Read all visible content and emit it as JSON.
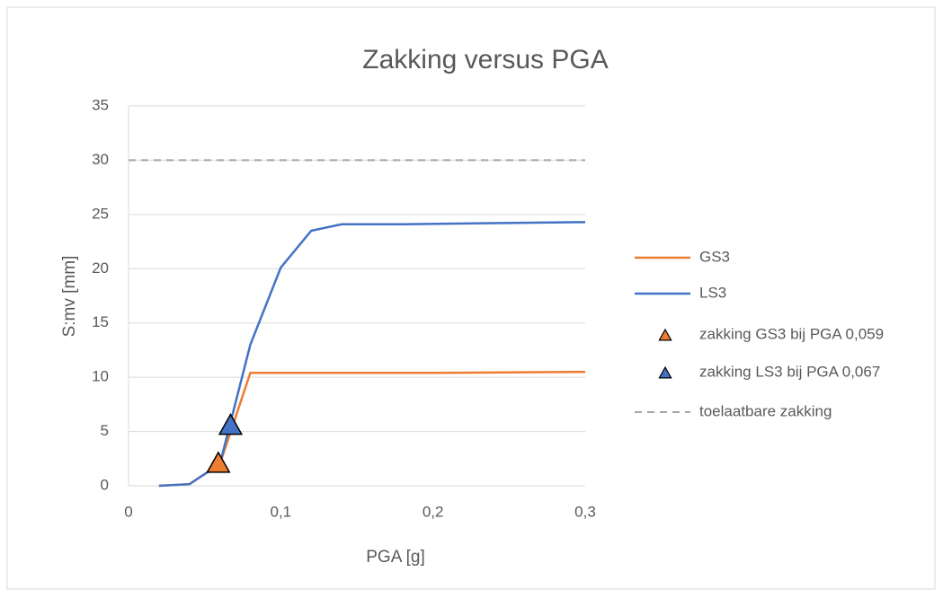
{
  "chart_data": {
    "type": "line",
    "title": "Zakking versus PGA",
    "x_label": "PGA [g]",
    "y_label": "S:mv [mm]",
    "xlim": [
      0,
      0.3
    ],
    "xticks": [
      0,
      {
        "value": 0.1,
        "label": "0,1"
      },
      {
        "value": 0.2,
        "label": "0,2"
      },
      {
        "value": 0.3,
        "label": "0,3"
      }
    ],
    "ylim": [
      0,
      35
    ],
    "yticks": [
      0,
      5,
      10,
      15,
      20,
      25,
      30,
      35
    ],
    "grid": true,
    "legend": "right",
    "series": [
      {
        "name": "GS3",
        "color": "#ed7d31",
        "kind": "line",
        "x": [
          0.02,
          0.04,
          0.06,
          0.08,
          0.1,
          0.2,
          0.3
        ],
        "values": [
          0,
          0.15,
          2,
          10.4,
          10.4,
          10.4,
          10.5
        ]
      },
      {
        "name": "LS3",
        "color": "#4472c4",
        "kind": "line",
        "x": [
          0.02,
          0.04,
          0.06,
          0.08,
          0.1,
          0.12,
          0.14,
          0.18,
          0.3
        ],
        "values": [
          0,
          0.15,
          2,
          13,
          20.1,
          23.5,
          24.1,
          24.1,
          24.3
        ]
      },
      {
        "name": "zakking GS3 bij PGA 0,059",
        "color": "#ed7d31",
        "kind": "scatter",
        "x": [
          0.059
        ],
        "values": [
          2
        ]
      },
      {
        "name": "zakking LS3 bij PGA 0,067",
        "color": "#4472c4",
        "kind": "scatter",
        "x": [
          0.067
        ],
        "values": [
          5.5
        ]
      },
      {
        "name": "toelaatbare zakking",
        "color": "#a5a5a5",
        "kind": "dashed",
        "x": [
          0,
          0.3
        ],
        "values": [
          30,
          30
        ]
      }
    ]
  }
}
